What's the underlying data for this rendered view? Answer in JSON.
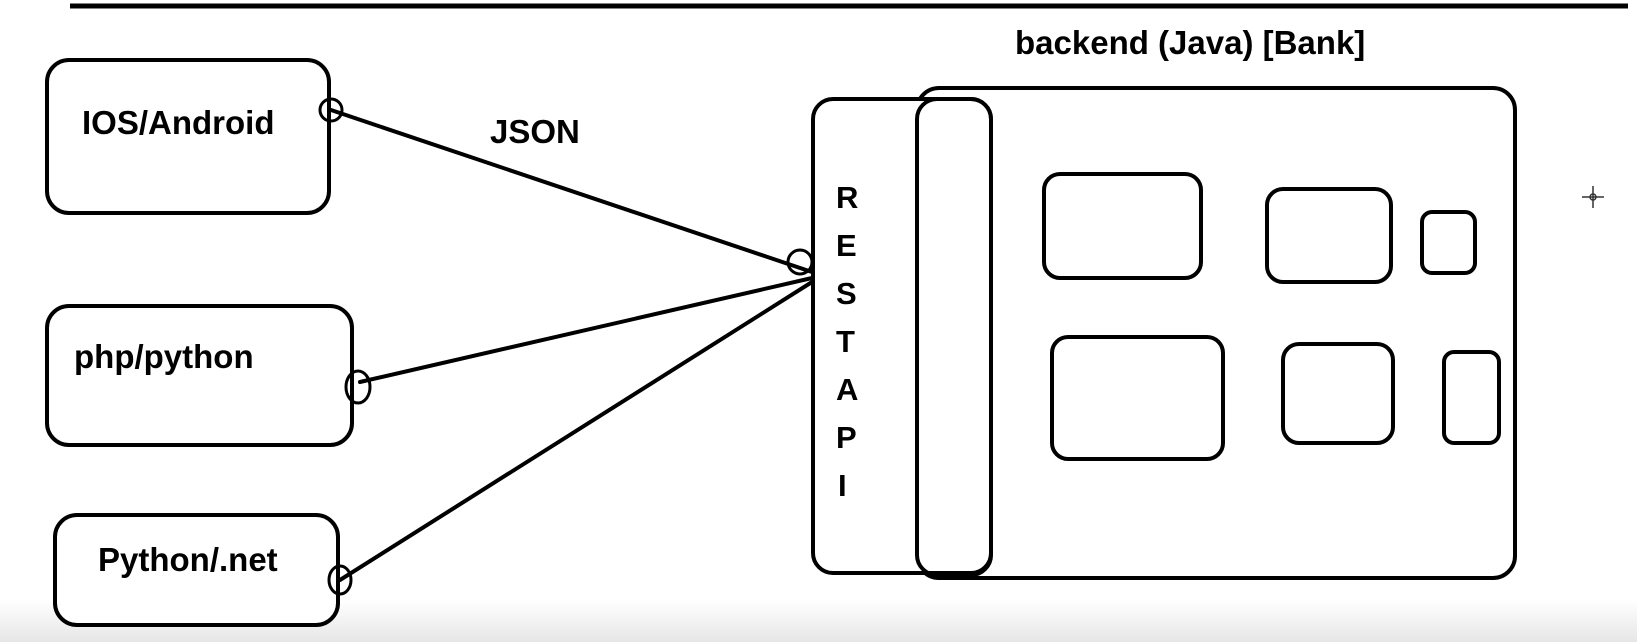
{
  "diagram": {
    "title": "backend (Java) [Bank]",
    "clients": [
      {
        "label": "IOS/Android"
      },
      {
        "label": "php/python"
      },
      {
        "label": "Python/.net"
      }
    ],
    "connection_label": "JSON",
    "api_letters": [
      "R",
      "E",
      "S",
      "T",
      "A",
      "P",
      "I"
    ],
    "colors": {
      "stroke": "#000000",
      "background": "#ffffff"
    }
  }
}
